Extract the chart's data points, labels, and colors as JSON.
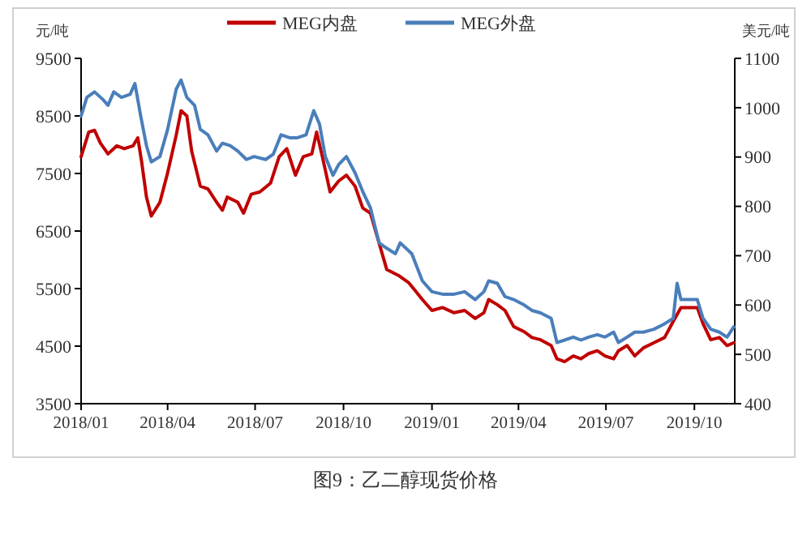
{
  "chart_data": {
    "type": "line",
    "ylabel": "元/吨",
    "y2label": "美元/吨",
    "legend": "top",
    "xlim": [
      "2018-01-01",
      "2019-11-12"
    ],
    "xticks": [
      {
        "value": "2018-01-01",
        "label": "2018/01"
      },
      {
        "value": "2018-04-01",
        "label": "2018/04"
      },
      {
        "value": "2018-07-01",
        "label": "2018/07"
      },
      {
        "value": "2018-10-01",
        "label": "2018/10"
      },
      {
        "value": "2019-01-01",
        "label": "2019/01"
      },
      {
        "value": "2019-04-01",
        "label": "2019/04"
      },
      {
        "value": "2019-07-01",
        "label": "2019/07"
      },
      {
        "value": "2019-10-01",
        "label": "2019/10"
      }
    ],
    "ylim": [
      3500,
      9500
    ],
    "yticks": [
      3500,
      4500,
      5500,
      6500,
      7500,
      8500,
      9500
    ],
    "y2lim": [
      400,
      1100
    ],
    "y2ticks": [
      400,
      500,
      600,
      700,
      800,
      900,
      1000,
      1100
    ],
    "series": [
      {
        "name": "MEG内盘",
        "color": "#c00000",
        "x": [
          "2018-01-01",
          "2018-01-09",
          "2018-01-15",
          "2018-01-21",
          "2018-01-29",
          "2018-02-07",
          "2018-02-15",
          "2018-02-24",
          "2018-03-01",
          "2018-03-05",
          "2018-03-10",
          "2018-03-15",
          "2018-03-24",
          "2018-04-01",
          "2018-04-10",
          "2018-04-15",
          "2018-04-21",
          "2018-04-26",
          "2018-05-05",
          "2018-05-13",
          "2018-05-22",
          "2018-05-28",
          "2018-06-02",
          "2018-06-13",
          "2018-06-19",
          "2018-06-27",
          "2018-07-06",
          "2018-07-17",
          "2018-07-26",
          "2018-08-03",
          "2018-08-12",
          "2018-08-20",
          "2018-08-29",
          "2018-09-03",
          "2018-09-09",
          "2018-09-17",
          "2018-09-26",
          "2018-10-04",
          "2018-10-13",
          "2018-10-21",
          "2018-10-29",
          "2018-11-07",
          "2018-11-15",
          "2018-11-27",
          "2018-12-08",
          "2018-12-22",
          "2019-01-01",
          "2019-01-12",
          "2019-01-24",
          "2019-02-04",
          "2019-02-15",
          "2019-02-24",
          "2019-03-01",
          "2019-03-10",
          "2019-03-18",
          "2019-03-27",
          "2019-04-07",
          "2019-04-15",
          "2019-04-24",
          "2019-05-05",
          "2019-05-11",
          "2019-05-19",
          "2019-05-28",
          "2019-06-05",
          "2019-06-13",
          "2019-06-22",
          "2019-06-30",
          "2019-07-09",
          "2019-07-14",
          "2019-07-23",
          "2019-07-31",
          "2019-08-09",
          "2019-08-20",
          "2019-08-31",
          "2019-09-09",
          "2019-09-17",
          "2019-09-29",
          "2019-10-04",
          "2019-10-10",
          "2019-10-18",
          "2019-10-27",
          "2019-11-04",
          "2019-11-11"
        ],
        "values": [
          7790,
          8220,
          8250,
          8030,
          7840,
          7980,
          7930,
          7980,
          8120,
          7700,
          7090,
          6760,
          7000,
          7510,
          8170,
          8590,
          8500,
          7890,
          7280,
          7230,
          7000,
          6860,
          7090,
          7000,
          6810,
          7140,
          7180,
          7330,
          7790,
          7930,
          7470,
          7790,
          7840,
          8220,
          7790,
          7180,
          7370,
          7470,
          7280,
          6900,
          6810,
          6290,
          5830,
          5730,
          5600,
          5310,
          5120,
          5170,
          5080,
          5120,
          4980,
          5080,
          5310,
          5220,
          5120,
          4840,
          4750,
          4650,
          4610,
          4510,
          4280,
          4230,
          4330,
          4280,
          4370,
          4420,
          4330,
          4280,
          4420,
          4510,
          4330,
          4470,
          4560,
          4650,
          4930,
          5170,
          5170,
          5170,
          4890,
          4610,
          4650,
          4510,
          4560
        ]
      },
      {
        "name": "MEG外盘",
        "color": "#4a7ebb",
        "axis": "y2",
        "x": [
          "2018-01-01",
          "2018-01-07",
          "2018-01-15",
          "2018-01-24",
          "2018-01-29",
          "2018-02-04",
          "2018-02-12",
          "2018-02-21",
          "2018-02-26",
          "2018-03-04",
          "2018-03-10",
          "2018-03-15",
          "2018-03-24",
          "2018-04-01",
          "2018-04-10",
          "2018-04-15",
          "2018-04-21",
          "2018-04-29",
          "2018-05-05",
          "2018-05-13",
          "2018-05-22",
          "2018-05-28",
          "2018-06-05",
          "2018-06-13",
          "2018-06-22",
          "2018-06-30",
          "2018-07-12",
          "2018-07-20",
          "2018-07-28",
          "2018-08-06",
          "2018-08-14",
          "2018-08-23",
          "2018-08-31",
          "2018-09-06",
          "2018-09-12",
          "2018-09-20",
          "2018-09-26",
          "2018-10-04",
          "2018-10-13",
          "2018-10-21",
          "2018-10-29",
          "2018-11-07",
          "2018-11-15",
          "2018-11-24",
          "2018-11-29",
          "2018-12-11",
          "2018-12-22",
          "2019-01-01",
          "2019-01-12",
          "2019-01-24",
          "2019-02-04",
          "2019-02-15",
          "2019-02-24",
          "2019-03-01",
          "2019-03-10",
          "2019-03-18",
          "2019-03-27",
          "2019-04-07",
          "2019-04-15",
          "2019-04-24",
          "2019-05-05",
          "2019-05-11",
          "2019-05-19",
          "2019-05-28",
          "2019-06-05",
          "2019-06-13",
          "2019-06-22",
          "2019-06-30",
          "2019-07-09",
          "2019-07-14",
          "2019-07-23",
          "2019-07-31",
          "2019-08-09",
          "2019-08-20",
          "2019-08-31",
          "2019-09-09",
          "2019-09-13",
          "2019-09-17",
          "2019-09-29",
          "2019-10-04",
          "2019-10-10",
          "2019-10-18",
          "2019-10-27",
          "2019-11-04",
          "2019-11-11"
        ],
        "values": [
          983,
          1021,
          1032,
          1016,
          1005,
          1032,
          1021,
          1027,
          1049,
          983,
          923,
          890,
          901,
          956,
          1038,
          1056,
          1021,
          1005,
          956,
          945,
          912,
          928,
          923,
          912,
          895,
          901,
          895,
          906,
          945,
          939,
          939,
          945,
          994,
          967,
          901,
          863,
          885,
          901,
          868,
          830,
          797,
          726,
          715,
          704,
          726,
          704,
          649,
          627,
          622,
          622,
          627,
          611,
          627,
          649,
          644,
          617,
          611,
          600,
          589,
          584,
          573,
          524,
          529,
          535,
          529,
          535,
          540,
          535,
          545,
          524,
          535,
          545,
          545,
          551,
          562,
          573,
          644,
          611,
          611,
          611,
          573,
          551,
          545,
          535,
          556
        ]
      }
    ],
    "annotations": [
      "图9：乙二醇现货价格"
    ]
  }
}
